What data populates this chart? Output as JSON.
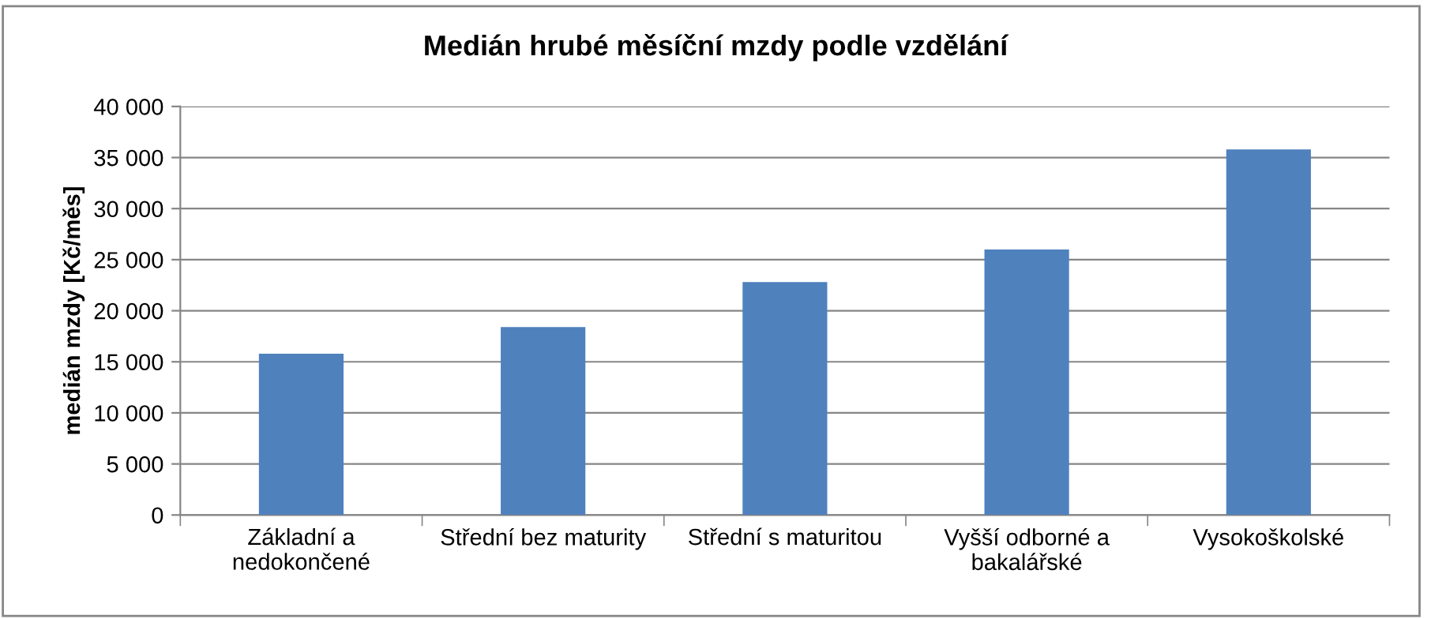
{
  "chart_data": {
    "type": "bar",
    "title": "Medián hrubé měsíční mzdy podle vzdělání",
    "ylabel": "medián mzdy [Kč/měs]",
    "categories": [
      "Základní a\nnedokončené",
      "Střední bez maturity",
      "Střední s maturitou",
      "Vyšší odborné a\nbakalářské",
      "Vysokoškolské"
    ],
    "values": [
      15800,
      18400,
      22800,
      26000,
      35800
    ],
    "color": "#4f81bd",
    "ylim": [
      0,
      40000
    ],
    "yticks": [
      0,
      {
        "value": 5000,
        "label": "5 000"
      },
      {
        "value": 10000,
        "label": "10 000"
      },
      {
        "value": 15000,
        "label": "15 000"
      },
      {
        "value": 20000,
        "label": "20 000"
      },
      {
        "value": 25000,
        "label": "25 000"
      },
      {
        "value": 30000,
        "label": "30 000"
      },
      {
        "value": 35000,
        "label": "35 000"
      },
      {
        "value": 40000,
        "label": "40 000"
      }
    ],
    "grid": "y",
    "legend": false
  }
}
